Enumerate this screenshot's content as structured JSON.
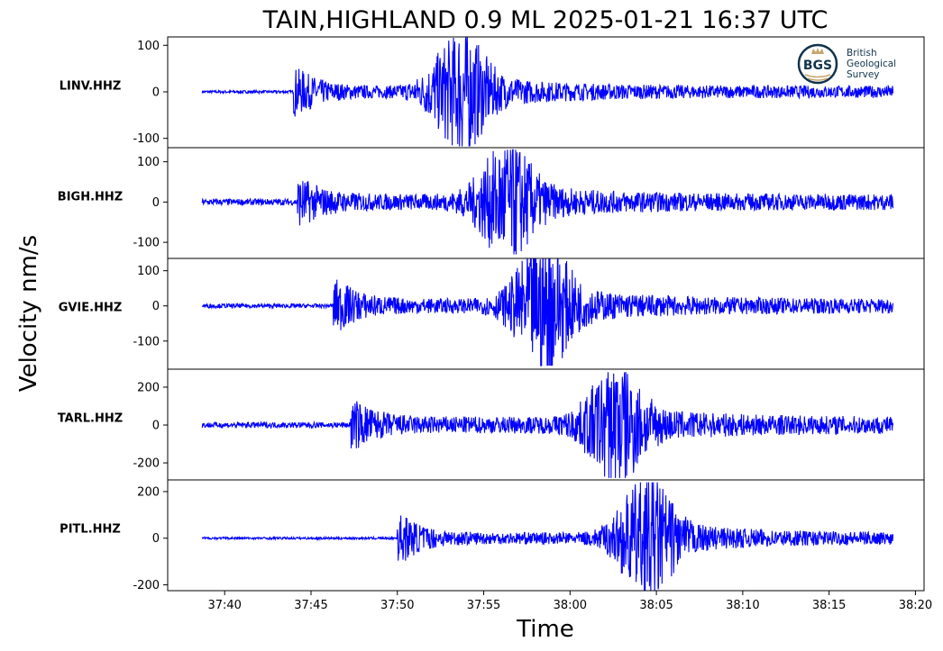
{
  "figure": {
    "title": "TAIN,HIGHLAND 0.9 ML   2025-01-21 16:37 UTC",
    "ylabel": "Velocity nm/s",
    "xlabel": "Time"
  },
  "logo": {
    "initials": "BGS",
    "line1": "British",
    "line2": "Geological",
    "line3": "Survey"
  },
  "chart_data": {
    "type": "line",
    "title": "TAIN,HIGHLAND 0.9 ML   2025-01-21 16:37 UTC",
    "xlabel": "Time",
    "ylabel": "Velocity nm/s",
    "x_axis": {
      "unit": "seconds after 16:37:00 UTC",
      "range": [
        36.7,
        80.5
      ],
      "ticks": [
        40,
        45,
        50,
        55,
        60,
        65,
        70,
        75,
        80
      ],
      "tick_labels": [
        "37:40",
        "37:45",
        "37:50",
        "37:55",
        "38:00",
        "38:05",
        "38:10",
        "38:15",
        "38:20"
      ]
    },
    "trace_color": "#0000ff",
    "trace_window": [
      38.7,
      78.7
    ],
    "panels": [
      {
        "station": "LINV.HHZ",
        "ylim": [
          -120,
          118
        ],
        "yticks": [
          100,
          0,
          -100
        ],
        "ytick_labels": [
          "100",
          "0",
          "-100"
        ],
        "p_arrival": 44.0,
        "s_arrival": 53.5,
        "peak_amplitude": 117,
        "noise_amplitude": 3,
        "coda_amplitude": 10
      },
      {
        "station": "BIGH.HHZ",
        "ylim": [
          -140,
          135
        ],
        "yticks": [
          100,
          0,
          -100
        ],
        "ytick_labels": [
          "100",
          "0",
          "-100"
        ],
        "p_arrival": 44.2,
        "s_arrival": 56.2,
        "peak_amplitude": 130,
        "noise_amplitude": 8,
        "coda_amplitude": 12
      },
      {
        "station": "GVIE.HHZ",
        "ylim": [
          -180,
          135
        ],
        "yticks": [
          100,
          0,
          -100
        ],
        "ytick_labels": [
          "100",
          "0",
          "-100"
        ],
        "p_arrival": 46.3,
        "s_arrival": 58.3,
        "peak_amplitude": 170,
        "noise_amplitude": 6,
        "coda_amplitude": 15
      },
      {
        "station": "TARL.HHZ",
        "ylim": [
          -290,
          295
        ],
        "yticks": [
          200,
          0,
          -200
        ],
        "ytick_labels": [
          "200",
          "0",
          "-200"
        ],
        "p_arrival": 47.3,
        "s_arrival": 62.5,
        "peak_amplitude": 280,
        "noise_amplitude": 15,
        "coda_amplitude": 30
      },
      {
        "station": "PITL.HHZ",
        "ylim": [
          -225,
          250
        ],
        "yticks": [
          200,
          0,
          -200
        ],
        "ytick_labels": [
          "200",
          "0",
          "-200"
        ],
        "p_arrival": 50.0,
        "s_arrival": 64.3,
        "peak_amplitude": 240,
        "noise_amplitude": 5,
        "coda_amplitude": 20
      }
    ]
  }
}
